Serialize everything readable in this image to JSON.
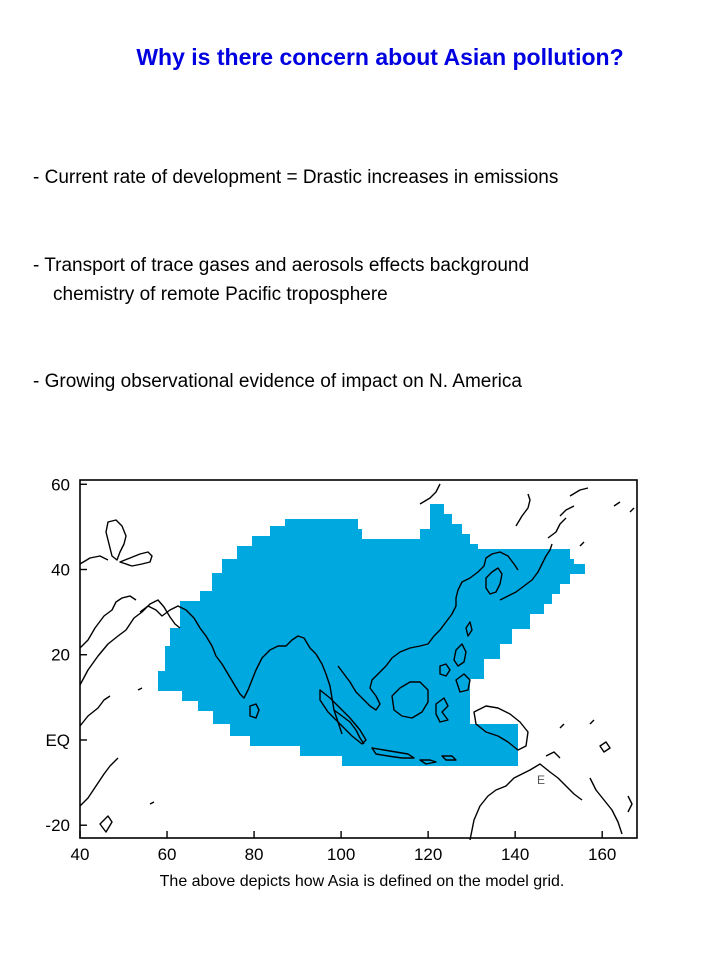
{
  "slide": {
    "title": "Why is there concern about Asian pollution?",
    "bullets": [
      {
        "line1": "- Current rate of development = Drastic increases in emissions",
        "line2": ""
      },
      {
        "line1": "- Transport of trace gases and aerosols effects background",
        "line2": "chemistry of remote Pacific troposphere"
      },
      {
        "line1": "- Growing observational evidence of impact on N. America",
        "line2": ""
      }
    ],
    "caption": "The above depicts how Asia is defined on the model grid."
  },
  "map": {
    "fill_color": "#00a8e0",
    "lon_ticks": [
      "40",
      "60",
      "80",
      "100",
      "120",
      "140",
      "160"
    ],
    "lat_ticks": [
      "60",
      "40",
      "20",
      "EQ",
      "-20"
    ],
    "lon_range": [
      40,
      168
    ],
    "lat_range": [
      -23,
      61
    ],
    "grid_mask_note_label": "E"
  }
}
